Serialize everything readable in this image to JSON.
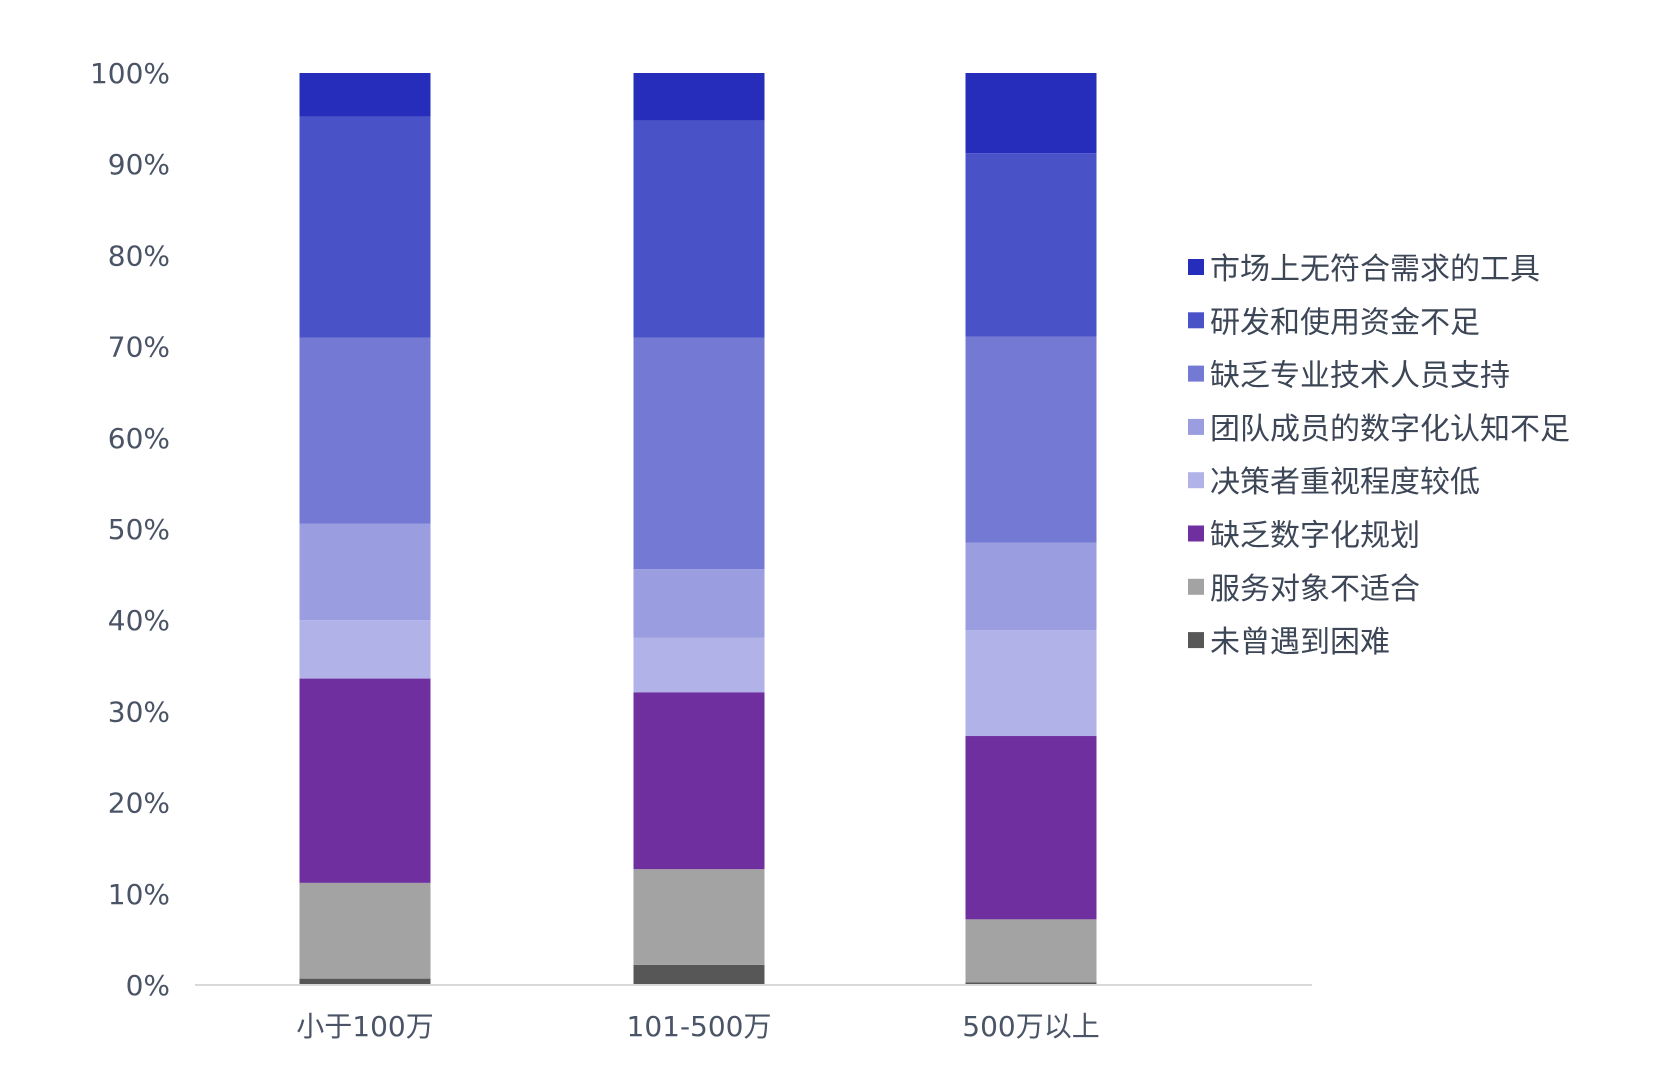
{
  "chart_data": {
    "type": "bar",
    "stacked": true,
    "categories": [
      "小于100万",
      "101-500万",
      "500万以上"
    ],
    "series": [
      {
        "name": "未曾遇到困难",
        "color": "#575757",
        "values": [
          0.7,
          2.2,
          0.3
        ]
      },
      {
        "name": "服务对象不适合",
        "color": "#a3a3a3",
        "values": [
          10.5,
          10.5,
          6.9
        ]
      },
      {
        "name": "缺乏数字化规划",
        "color": "#6f2f9f",
        "values": [
          22.4,
          19.4,
          20.1
        ]
      },
      {
        "name": "决策者重视程度较低",
        "color": "#b0b2e8",
        "values": [
          6.4,
          6.0,
          11.6
        ]
      },
      {
        "name": "团队成员的数字化认知不足",
        "color": "#9a9de0",
        "values": [
          10.6,
          7.5,
          9.6
        ]
      },
      {
        "name": "缺乏专业技术人员支持",
        "color": "#7479d4",
        "values": [
          20.4,
          25.4,
          22.6
        ]
      },
      {
        "name": "研发和使用资金不足",
        "color": "#4a52c8",
        "values": [
          24.2,
          23.8,
          20.1
        ]
      },
      {
        "name": "市场上无符合需求的工具",
        "color": "#262dbb",
        "values": [
          4.8,
          5.2,
          8.8
        ]
      }
    ],
    "ylim": [
      0,
      100
    ],
    "yticks": [
      "0%",
      "10%",
      "20%",
      "30%",
      "40%",
      "50%",
      "60%",
      "70%",
      "80%",
      "90%",
      "100%"
    ],
    "legend_position": "right",
    "grid": false
  }
}
